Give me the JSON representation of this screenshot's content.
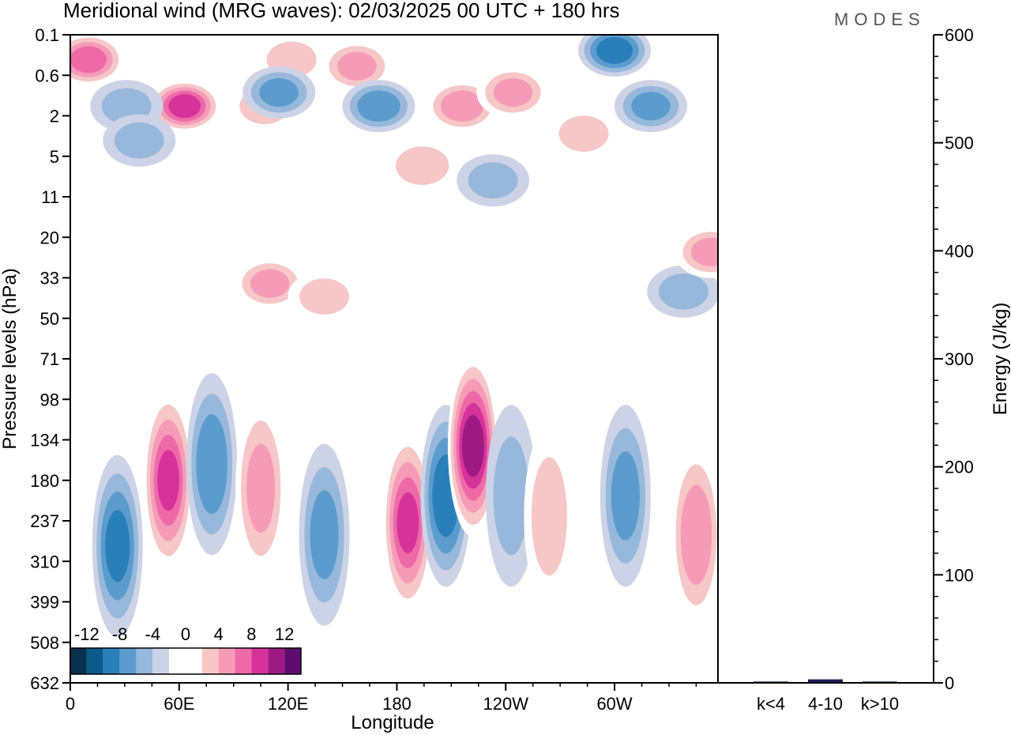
{
  "title": "Meridional wind (MRG waves):  02/03/2025  00 UTC  + 180 hrs",
  "logo": "MODES",
  "chart_data": [
    {
      "type": "heatmap",
      "variable": "Meridional wind (MRG waves)",
      "xlabel": "Longitude",
      "ylabel": "Pressure levels (hPa)",
      "x_ticks": [
        "0",
        "60E",
        "120E",
        "180",
        "120W",
        "60W"
      ],
      "x_range_deg": [
        0,
        357
      ],
      "y_ticks": [
        "0.1",
        "0.6",
        "2",
        "5",
        "11",
        "20",
        "33",
        "50",
        "71",
        "98",
        "134",
        "180",
        "237",
        "310",
        "399",
        "508",
        "632"
      ],
      "colorbar": {
        "tick_labels": [
          "-12",
          "-8",
          "-4",
          "0",
          "4",
          "8",
          "12"
        ],
        "levels": [
          -14,
          -12,
          -10,
          -8,
          -6,
          -4,
          -2,
          2,
          4,
          6,
          8,
          10,
          12,
          14
        ],
        "colors": [
          "#08304f",
          "#0a5a8c",
          "#2a7fb8",
          "#5c9ccc",
          "#97b8da",
          "#cdd3e6",
          "#ffffff",
          "#ffffff",
          "#f7c6c6",
          "#f59bb8",
          "#ee6aa7",
          "#d6339a",
          "#9e1a83",
          "#5e0d6e"
        ]
      },
      "features": [
        {
          "lon": 10,
          "level": "0.3",
          "value": 9
        },
        {
          "lon": 63,
          "level": "1.5",
          "value": 11
        },
        {
          "lon": 122,
          "level": "0.3",
          "value": 4
        },
        {
          "lon": 107,
          "level": "1.5",
          "value": 4
        },
        {
          "lon": 31,
          "level": "1.5",
          "value": -4
        },
        {
          "lon": 38,
          "level": "3.5",
          "value": -4
        },
        {
          "lon": 115,
          "level": "1",
          "value": -6
        },
        {
          "lon": 158,
          "level": "0.4",
          "value": 6
        },
        {
          "lon": 170,
          "level": "1.5",
          "value": -7
        },
        {
          "lon": 194,
          "level": "6",
          "value": 5
        },
        {
          "lon": 216,
          "level": "1.5",
          "value": 7
        },
        {
          "lon": 244,
          "level": "1",
          "value": 6
        },
        {
          "lon": 300,
          "level": "0.2",
          "value": -9
        },
        {
          "lon": 320,
          "level": "1.5",
          "value": -6
        },
        {
          "lon": 283,
          "level": "3",
          "value": 4
        },
        {
          "lon": 233,
          "level": "8",
          "value": -4
        },
        {
          "lon": 110,
          "level": "35",
          "value": 6
        },
        {
          "lon": 140,
          "level": "40",
          "value": 4
        },
        {
          "lon": 338,
          "level": "38",
          "value": -4
        },
        {
          "lon": 353,
          "level": "24",
          "value": 6
        },
        {
          "lon": 26,
          "level": "280",
          "value": -8
        },
        {
          "lon": 54,
          "level": "180",
          "value": 10
        },
        {
          "lon": 78,
          "level": "160",
          "value": -7
        },
        {
          "lon": 105,
          "level": "190",
          "value": 6
        },
        {
          "lon": 140,
          "level": "260",
          "value": -6
        },
        {
          "lon": 186,
          "level": "240",
          "value": 10
        },
        {
          "lon": 207,
          "level": "200",
          "value": -9
        },
        {
          "lon": 222,
          "level": "140",
          "value": 13
        },
        {
          "lon": 243,
          "level": "200",
          "value": -4
        },
        {
          "lon": 264,
          "level": "230",
          "value": 4
        },
        {
          "lon": 306,
          "level": "200",
          "value": -6
        },
        {
          "lon": 345,
          "level": "260",
          "value": 7
        }
      ]
    },
    {
      "type": "bar",
      "ylabel": "Energy (J/kg)",
      "ylim": [
        0,
        600
      ],
      "y_ticks": [
        0,
        100,
        200,
        300,
        400,
        500,
        600
      ],
      "categories": [
        "k<4",
        "4-10",
        "k>10"
      ],
      "values": [
        0.5,
        2.5,
        0.5
      ],
      "colors": [
        "#1a1f5a",
        "#1a1f5a",
        "#1a1f5a"
      ]
    }
  ]
}
